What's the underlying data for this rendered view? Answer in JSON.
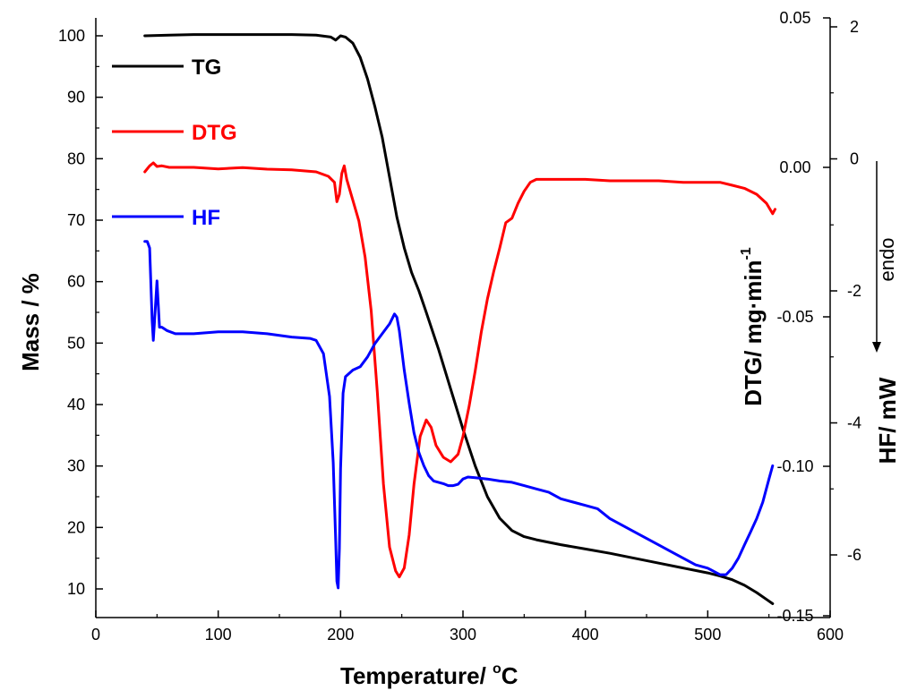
{
  "chart_data": {
    "type": "line",
    "x_axis": {
      "label": "Temperature/ °C",
      "label_main": "Temperature/ ",
      "label_sup": "o",
      "label_unit": "C",
      "range": [
        0,
        600
      ],
      "ticks": [
        0,
        100,
        200,
        300,
        400,
        500,
        600
      ],
      "tick_labels": [
        "0",
        "100",
        "200",
        "300",
        "400",
        "500",
        "600"
      ]
    },
    "y_axis_left": {
      "label": "Mass / %",
      "range": [
        7,
        102
      ],
      "ticks": [
        10,
        20,
        30,
        40,
        50,
        60,
        70,
        80,
        90,
        100
      ],
      "tick_labels": [
        "10",
        "20",
        "30",
        "40",
        "50",
        "60",
        "70",
        "80",
        "90",
        "100"
      ]
    },
    "y_axis_dtg": {
      "label": "DTG/ mg·min⁻¹",
      "label_main": "DTG/ mg·min",
      "label_sup": "-1",
      "range": [
        -0.15,
        0.05
      ],
      "ticks": [
        0.05,
        0.0,
        -0.05,
        -0.1,
        -0.15
      ],
      "tick_labels": [
        "0.05",
        "0.00",
        "-0.05",
        "-0.10",
        "-0.15"
      ]
    },
    "y_axis_hf": {
      "label": "HF/ mW",
      "range": [
        -7,
        2
      ],
      "ticks": [
        2,
        0,
        -2,
        -4,
        -6
      ],
      "tick_labels": [
        "2",
        "0",
        "-2",
        "-4",
        "-6"
      ]
    },
    "annotation": {
      "text": "endo",
      "direction": "down"
    },
    "series": [
      {
        "name": "TG",
        "axis": "left",
        "color": "#000000",
        "x": [
          40,
          60,
          80,
          100,
          120,
          140,
          160,
          180,
          192,
          196,
          200,
          204,
          210,
          216,
          222,
          228,
          234,
          240,
          246,
          252,
          258,
          264,
          270,
          280,
          290,
          300,
          310,
          320,
          330,
          340,
          350,
          360,
          380,
          400,
          420,
          440,
          460,
          480,
          500,
          510,
          520,
          530,
          540,
          548,
          553
        ],
        "y": [
          100,
          100.1,
          100.2,
          100.2,
          100.2,
          100.2,
          100.2,
          100.1,
          99.8,
          99.3,
          100.0,
          99.8,
          98.8,
          96.5,
          93.0,
          88.5,
          83.5,
          77.0,
          70.5,
          65.5,
          61.5,
          58.5,
          55.0,
          49.0,
          42.5,
          36.0,
          30.0,
          25.0,
          21.5,
          19.5,
          18.5,
          18.0,
          17.2,
          16.5,
          15.8,
          15.0,
          14.2,
          13.4,
          12.6,
          12.1,
          11.5,
          10.6,
          9.4,
          8.3,
          7.6
        ]
      },
      {
        "name": "DTG",
        "axis": "dtg",
        "color": "#ff0000",
        "x": [
          40,
          44,
          47,
          50,
          54,
          60,
          80,
          100,
          120,
          140,
          160,
          180,
          190,
          195,
          197,
          199,
          201,
          203,
          205,
          210,
          215,
          220,
          225,
          230,
          235,
          240,
          245,
          248,
          252,
          256,
          260,
          265,
          270,
          274,
          278,
          284,
          290,
          296,
          300,
          305,
          310,
          315,
          320,
          325,
          330,
          335,
          340,
          345,
          350,
          355,
          360,
          380,
          400,
          420,
          440,
          460,
          480,
          500,
          510,
          520,
          530,
          540,
          548,
          553,
          555
        ],
        "y": [
          -0.0015,
          0.0005,
          0.0015,
          0.0003,
          0.0005,
          0.0,
          0.0,
          -0.0005,
          -0.0001,
          -0.0006,
          -0.0008,
          -0.0015,
          -0.003,
          -0.005,
          -0.0115,
          -0.009,
          -0.002,
          0.0005,
          -0.004,
          -0.011,
          -0.018,
          -0.03,
          -0.048,
          -0.075,
          -0.106,
          -0.127,
          -0.135,
          -0.137,
          -0.134,
          -0.123,
          -0.106,
          -0.09,
          -0.0845,
          -0.087,
          -0.093,
          -0.097,
          -0.0985,
          -0.096,
          -0.09,
          -0.08,
          -0.068,
          -0.055,
          -0.044,
          -0.035,
          -0.027,
          -0.0185,
          -0.017,
          -0.012,
          -0.008,
          -0.005,
          -0.004,
          -0.004,
          -0.004,
          -0.0045,
          -0.0045,
          -0.0045,
          -0.005,
          -0.005,
          -0.005,
          -0.006,
          -0.007,
          -0.009,
          -0.012,
          -0.0155,
          -0.014
        ]
      },
      {
        "name": "HF",
        "axis": "hf",
        "color": "#0000ff",
        "x": [
          40,
          42,
          44,
          46,
          47,
          48,
          50,
          52,
          54,
          58,
          65,
          80,
          100,
          120,
          140,
          160,
          175,
          180,
          186,
          191,
          194,
          196,
          197,
          198,
          199,
          200,
          202,
          204,
          210,
          216,
          222,
          228,
          234,
          240,
          244,
          246,
          248,
          252,
          256,
          260,
          264,
          268,
          272,
          276,
          280,
          284,
          288,
          292,
          296,
          300,
          304,
          310,
          320,
          330,
          340,
          350,
          360,
          370,
          380,
          390,
          400,
          410,
          420,
          430,
          440,
          450,
          460,
          470,
          480,
          490,
          500,
          505,
          510,
          515,
          520,
          525,
          530,
          535,
          540,
          545,
          550,
          553
        ],
        "y": [
          -1.25,
          -1.25,
          -1.35,
          -2.45,
          -2.75,
          -2.45,
          -1.85,
          -2.55,
          -2.55,
          -2.6,
          -2.65,
          -2.65,
          -2.62,
          -2.62,
          -2.65,
          -2.7,
          -2.72,
          -2.75,
          -2.95,
          -3.6,
          -4.6,
          -5.8,
          -6.4,
          -6.5,
          -5.9,
          -4.7,
          -3.55,
          -3.3,
          -3.2,
          -3.15,
          -3.0,
          -2.8,
          -2.65,
          -2.5,
          -2.35,
          -2.4,
          -2.6,
          -3.2,
          -3.7,
          -4.15,
          -4.45,
          -4.65,
          -4.8,
          -4.88,
          -4.9,
          -4.92,
          -4.95,
          -4.95,
          -4.93,
          -4.85,
          -4.82,
          -4.83,
          -4.85,
          -4.88,
          -4.9,
          -4.95,
          -5.0,
          -5.05,
          -5.15,
          -5.2,
          -5.25,
          -5.3,
          -5.45,
          -5.55,
          -5.65,
          -5.75,
          -5.85,
          -5.95,
          -6.05,
          -6.15,
          -6.2,
          -6.25,
          -6.3,
          -6.3,
          -6.2,
          -6.05,
          -5.85,
          -5.65,
          -5.45,
          -5.2,
          -4.85,
          -4.65
        ]
      }
    ]
  }
}
